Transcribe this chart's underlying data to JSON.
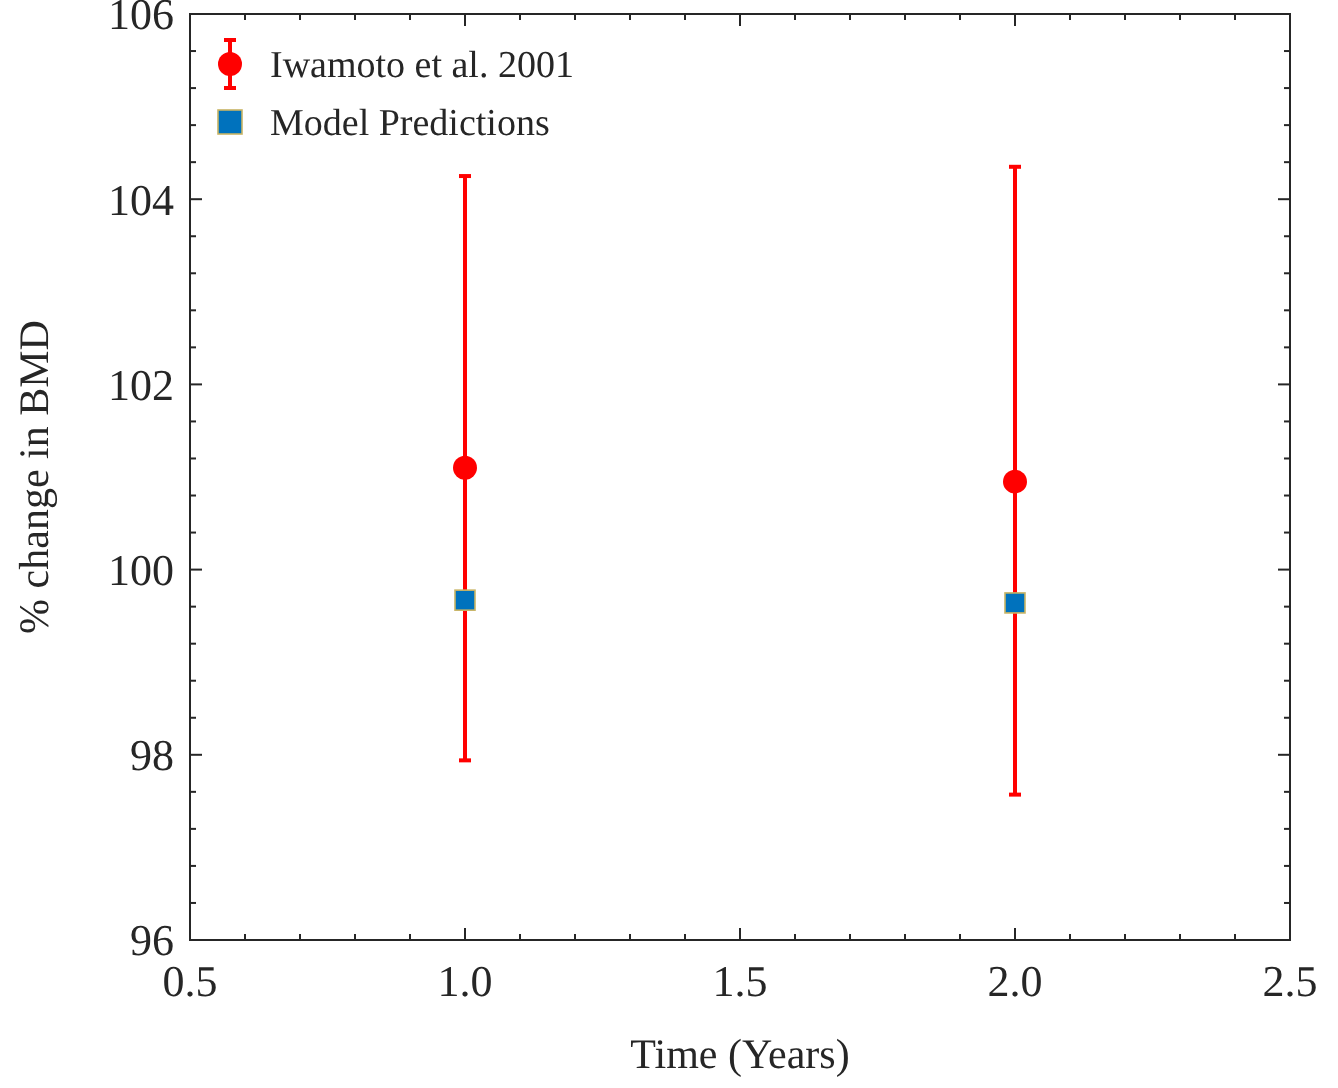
{
  "chart_data": {
    "type": "scatter",
    "xlabel": "Time (Years)",
    "ylabel": "% change in BMD",
    "x": [
      1.0,
      2.0
    ],
    "xlim": [
      0.5,
      2.5
    ],
    "xticks": [
      {
        "value": 0.5,
        "label": "0.5"
      },
      {
        "value": 1,
        "label": "1.0"
      },
      {
        "value": 1.5,
        "label": "1.5"
      },
      {
        "value": 2,
        "label": "2.0"
      },
      {
        "value": 2.5,
        "label": "2.5"
      }
    ],
    "ylim": [
      96,
      106
    ],
    "yticks": [
      96,
      98,
      100,
      102,
      104,
      106
    ],
    "grid": false,
    "legend": "top left",
    "series": [
      {
        "name": "Iwamoto et al. 2001",
        "color": "#ff0000",
        "values": [
          101.1,
          100.95
        ],
        "errors": [
          [
            97.94,
            104.25
          ],
          [
            97.57,
            104.35
          ]
        ],
        "marker": "circle"
      },
      {
        "name": "Model Predictions",
        "color": "#0072bd",
        "values": [
          99.67,
          99.64
        ],
        "marker": "square"
      }
    ]
  }
}
